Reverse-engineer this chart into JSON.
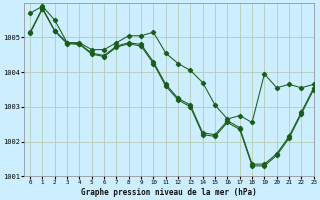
{
  "background_color": "#cceeff",
  "grid_color": "#b5ccb5",
  "line_color": "#1a5c1a",
  "title": "Graphe pression niveau de la mer (hPa)",
  "xlim": [
    -0.5,
    23
  ],
  "ylim": [
    1001.0,
    1006.0
  ],
  "yticks": [
    1001,
    1002,
    1003,
    1004,
    1005
  ],
  "xticks": [
    0,
    1,
    2,
    3,
    4,
    5,
    6,
    7,
    8,
    9,
    10,
    11,
    12,
    13,
    14,
    15,
    16,
    17,
    18,
    19,
    20,
    21,
    22,
    23
  ],
  "series": [
    [
      1005.7,
      1005.9,
      1005.5,
      1004.85,
      1004.85,
      1004.65,
      1004.65,
      1004.85,
      1005.05,
      1005.05,
      1005.15,
      1004.55,
      1004.25,
      1004.05,
      1003.7,
      1003.05,
      1002.65,
      1002.75,
      1002.55,
      1003.95,
      1003.55,
      1003.65,
      1003.55,
      1003.65
    ],
    [
      1005.15,
      1005.85,
      1005.2,
      1004.85,
      1004.82,
      1004.55,
      1004.48,
      1004.75,
      1004.85,
      1004.8,
      1004.3,
      1003.65,
      1003.25,
      1003.05,
      1002.25,
      1002.2,
      1002.6,
      1002.4,
      1001.35,
      1001.35,
      1001.65,
      1002.15,
      1002.85,
      1003.55
    ],
    [
      1005.12,
      1005.82,
      1005.18,
      1004.82,
      1004.8,
      1004.52,
      1004.45,
      1004.72,
      1004.82,
      1004.75,
      1004.25,
      1003.6,
      1003.2,
      1003.0,
      1002.2,
      1002.15,
      1002.55,
      1002.35,
      1001.3,
      1001.3,
      1001.6,
      1002.1,
      1002.8,
      1003.5
    ]
  ]
}
